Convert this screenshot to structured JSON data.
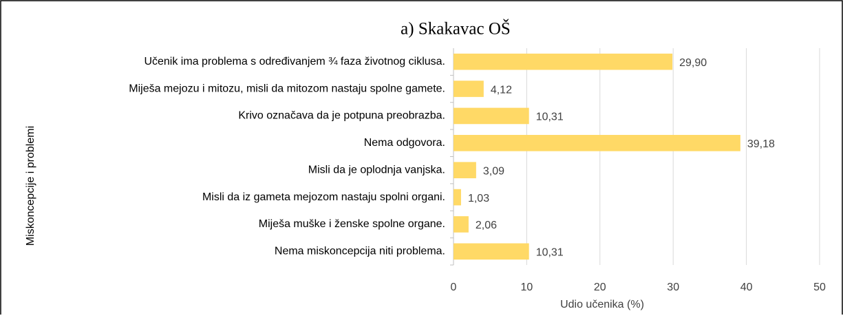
{
  "chart_data": {
    "type": "bar",
    "orientation": "horizontal",
    "title": "a) Skakavac OŠ",
    "x_label": "Udio učenika (%)",
    "y_label": "Miskoncepcije i problemi",
    "categories": [
      "Učenik ima problema s određivanjem ¾ faza životnog ciklusa.",
      "Miješa mejozu i mitozu, misli da mitozom nastaju spolne gamete.",
      "Krivo označava da je potpuna preobrazba.",
      "Nema odgovora.",
      "Misli da je oplodnja vanjska.",
      "Misli da iz gameta mejozom nastaju spolni organi.",
      "Miješa muške i ženske spolne organe.",
      "Nema miskoncepcija niti problema."
    ],
    "values": [
      29.9,
      4.12,
      10.31,
      39.18,
      3.09,
      1.03,
      2.06,
      10.31
    ],
    "value_labels": [
      "29,90",
      "4,12",
      "10,31",
      "39,18",
      "3,09",
      "1,03",
      "2,06",
      "10,31"
    ],
    "color": "#ffd966",
    "xlim": [
      0,
      50
    ],
    "xticks": [
      0,
      10,
      20,
      30,
      40,
      50
    ],
    "grid": true
  }
}
